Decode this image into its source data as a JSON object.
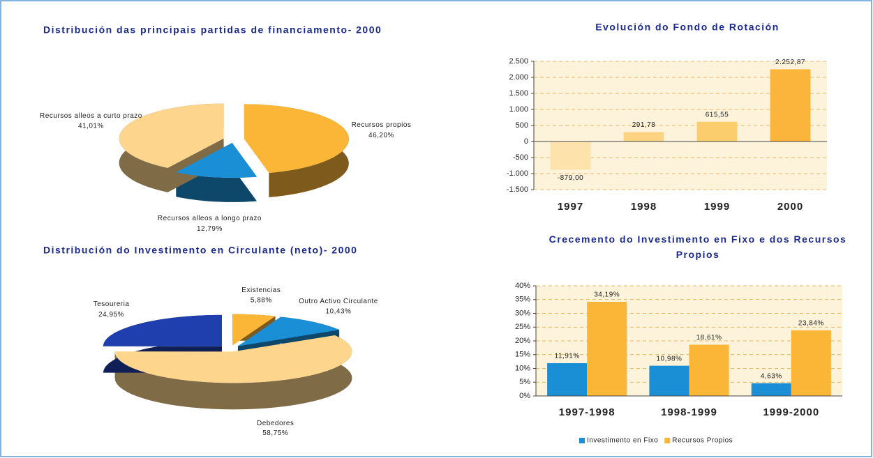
{
  "chart_data": [
    {
      "type": "pie",
      "title": "Distribución das principais partidas de financiamento- 2000",
      "categories": [
        "Recursos propios",
        "Recursos alleos a longo prazo",
        "Recursos alleos a curto prazo"
      ],
      "values": [
        46.2,
        12.79,
        41.01
      ],
      "value_labels": [
        "46,20%",
        "12,79%",
        "41,01%"
      ],
      "colors": [
        "#fbb637",
        "#1a8fd6",
        "#fdd58c"
      ]
    },
    {
      "type": "bar",
      "title": "Evolución do Fondo de Rotación",
      "categories": [
        "1997",
        "1998",
        "1999",
        "2000"
      ],
      "values": [
        -879,
        291.78,
        615.55,
        2252.87
      ],
      "value_labels": [
        "-879,00",
        "291,78",
        "615,55",
        "2.252,87"
      ],
      "colors": [
        "#fde2ac",
        "#fdd382",
        "#fccd6c",
        "#fbb43c"
      ],
      "ylim": [
        -1500,
        2500
      ],
      "yticks": [
        {
          "value": -1500,
          "label": "-1.500"
        },
        {
          "value": -1000,
          "label": "-1.000"
        },
        -500,
        0,
        500,
        {
          "value": 1000,
          "label": "1.000"
        },
        {
          "value": 1500,
          "label": "1.500"
        },
        {
          "value": 2000,
          "label": "2.000"
        },
        {
          "value": 2500,
          "label": "2.500"
        }
      ],
      "grid": true
    },
    {
      "type": "pie",
      "title": "Distribución do Investimento en Circulante (neto)- 2000",
      "categories": [
        "Existencias",
        "Outro Activo Circulante",
        "Debedores",
        "Tesoureria"
      ],
      "values": [
        5.88,
        10.43,
        58.75,
        24.95
      ],
      "value_labels": [
        "5,88%",
        "10,43%",
        "58,75%",
        "24,95%"
      ],
      "colors": [
        "#fbb637",
        "#1a8fd6",
        "#fdd58c",
        "#1f3fae"
      ]
    },
    {
      "type": "bar",
      "title": "Crecemento do Investimento en Fixo e dos Recursos Propios",
      "categories": [
        "1997-1998",
        "1998-1999",
        "1999-2000"
      ],
      "series": [
        {
          "name": "Investimento en Fixo",
          "color": "#1a8fd6",
          "values": [
            11.91,
            10.98,
            4.63
          ],
          "value_labels": [
            "11,91%",
            "10,98%",
            "4,63%"
          ]
        },
        {
          "name": "Recursos Propios",
          "color": "#fbb637",
          "values": [
            34.19,
            18.61,
            23.84
          ],
          "value_labels": [
            "34,19%",
            "18,61%",
            "23,84%"
          ]
        }
      ],
      "ylim": [
        0,
        40
      ],
      "yticks": [
        {
          "value": 0,
          "label": "0%"
        },
        {
          "value": 5,
          "label": "5%"
        },
        {
          "value": 10,
          "label": "10%"
        },
        {
          "value": 15,
          "label": "15%"
        },
        {
          "value": 20,
          "label": "20%"
        },
        {
          "value": 25,
          "label": "25%"
        },
        {
          "value": 30,
          "label": "30%"
        },
        {
          "value": 35,
          "label": "35%"
        },
        {
          "value": 40,
          "label": "40%"
        }
      ],
      "grid": true,
      "legend": "bottom"
    }
  ]
}
